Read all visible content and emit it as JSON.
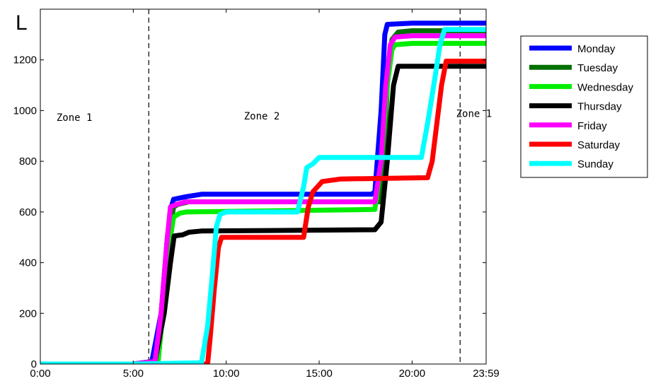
{
  "chart_data": {
    "type": "line",
    "title": "",
    "xlabel": "",
    "ylabel": "L",
    "xlim": [
      0,
      1439
    ],
    "ylim": [
      0,
      1400
    ],
    "x_unit": "minutes",
    "x_ticks": [
      {
        "value": 0,
        "label": "0:00"
      },
      {
        "value": 300,
        "label": "5:00"
      },
      {
        "value": 600,
        "label": "10:00"
      },
      {
        "value": 900,
        "label": "15:00"
      },
      {
        "value": 1200,
        "label": "20:00"
      },
      {
        "value": 1439,
        "label": "23:59"
      }
    ],
    "y_ticks": [
      {
        "value": 0,
        "label": "0"
      },
      {
        "value": 200,
        "label": "200"
      },
      {
        "value": 400,
        "label": "400"
      },
      {
        "value": 600,
        "label": "600"
      },
      {
        "value": 800,
        "label": "800"
      },
      {
        "value": 1000,
        "label": "1000"
      },
      {
        "value": 1200,
        "label": "1200"
      }
    ],
    "grid": false,
    "legend_position": "right",
    "zone_lines": [
      350,
      1355
    ],
    "zone_labels": [
      {
        "text": "Zone 1",
        "x": 110,
        "y": 960
      },
      {
        "text": "Zone 2",
        "x": 715,
        "y": 965
      },
      {
        "text": "Zone 1",
        "x": 1400,
        "y": 975
      }
    ],
    "series": [
      {
        "name": "Monday",
        "color": "#0000ff",
        "points": [
          [
            0,
            0
          ],
          [
            300,
            0
          ],
          [
            360,
            10
          ],
          [
            390,
            200
          ],
          [
            410,
            500
          ],
          [
            425,
            630
          ],
          [
            430,
            650
          ],
          [
            470,
            660
          ],
          [
            520,
            670
          ],
          [
            1070,
            670
          ],
          [
            1080,
            680
          ],
          [
            1100,
            1000
          ],
          [
            1112,
            1300
          ],
          [
            1120,
            1340
          ],
          [
            1200,
            1345
          ],
          [
            1439,
            1345
          ]
        ]
      },
      {
        "name": "Tuesday",
        "color": "#007000",
        "points": [
          [
            0,
            0
          ],
          [
            300,
            0
          ],
          [
            380,
            10
          ],
          [
            395,
            200
          ],
          [
            415,
            500
          ],
          [
            430,
            620
          ],
          [
            445,
            630
          ],
          [
            480,
            640
          ],
          [
            1100,
            640
          ],
          [
            1110,
            800
          ],
          [
            1120,
            1100
          ],
          [
            1135,
            1280
          ],
          [
            1155,
            1310
          ],
          [
            1200,
            1315
          ],
          [
            1439,
            1315
          ]
        ]
      },
      {
        "name": "Wednesday",
        "color": "#00ee00",
        "points": [
          [
            0,
            0
          ],
          [
            300,
            0
          ],
          [
            380,
            10
          ],
          [
            395,
            200
          ],
          [
            420,
            500
          ],
          [
            430,
            580
          ],
          [
            450,
            595
          ],
          [
            470,
            600
          ],
          [
            1080,
            610
          ],
          [
            1100,
            800
          ],
          [
            1120,
            1100
          ],
          [
            1135,
            1240
          ],
          [
            1145,
            1260
          ],
          [
            1200,
            1265
          ],
          [
            1439,
            1265
          ]
        ]
      },
      {
        "name": "Thursday",
        "color": "#000000",
        "points": [
          [
            0,
            0
          ],
          [
            300,
            0
          ],
          [
            370,
            10
          ],
          [
            400,
            200
          ],
          [
            420,
            400
          ],
          [
            432,
            505
          ],
          [
            460,
            510
          ],
          [
            480,
            520
          ],
          [
            520,
            525
          ],
          [
            1080,
            530
          ],
          [
            1100,
            560
          ],
          [
            1120,
            800
          ],
          [
            1140,
            1100
          ],
          [
            1155,
            1175
          ],
          [
            1439,
            1175
          ]
        ]
      },
      {
        "name": "Friday",
        "color": "#ff00ff",
        "points": [
          [
            0,
            0
          ],
          [
            300,
            0
          ],
          [
            370,
            10
          ],
          [
            390,
            200
          ],
          [
            410,
            500
          ],
          [
            420,
            620
          ],
          [
            440,
            630
          ],
          [
            470,
            640
          ],
          [
            1080,
            640
          ],
          [
            1100,
            800
          ],
          [
            1115,
            1100
          ],
          [
            1130,
            1260
          ],
          [
            1145,
            1290
          ],
          [
            1200,
            1295
          ],
          [
            1439,
            1295
          ]
        ]
      },
      {
        "name": "Saturday",
        "color": "#ff0000",
        "points": [
          [
            0,
            0
          ],
          [
            300,
            0
          ],
          [
            540,
            0
          ],
          [
            548,
            100
          ],
          [
            562,
            300
          ],
          [
            575,
            460
          ],
          [
            585,
            500
          ],
          [
            850,
            500
          ],
          [
            865,
            620
          ],
          [
            880,
            680
          ],
          [
            910,
            720
          ],
          [
            970,
            730
          ],
          [
            1250,
            735
          ],
          [
            1265,
            800
          ],
          [
            1295,
            1100
          ],
          [
            1310,
            1195
          ],
          [
            1439,
            1195
          ]
        ]
      },
      {
        "name": "Sunday",
        "color": "#00ffff",
        "points": [
          [
            0,
            0
          ],
          [
            300,
            0
          ],
          [
            520,
            5
          ],
          [
            540,
            150
          ],
          [
            555,
            350
          ],
          [
            568,
            540
          ],
          [
            580,
            590
          ],
          [
            600,
            600
          ],
          [
            830,
            600
          ],
          [
            850,
            700
          ],
          [
            860,
            775
          ],
          [
            880,
            790
          ],
          [
            900,
            815
          ],
          [
            1230,
            815
          ],
          [
            1250,
            950
          ],
          [
            1270,
            1100
          ],
          [
            1290,
            1260
          ],
          [
            1305,
            1320
          ],
          [
            1439,
            1320
          ]
        ]
      }
    ]
  }
}
